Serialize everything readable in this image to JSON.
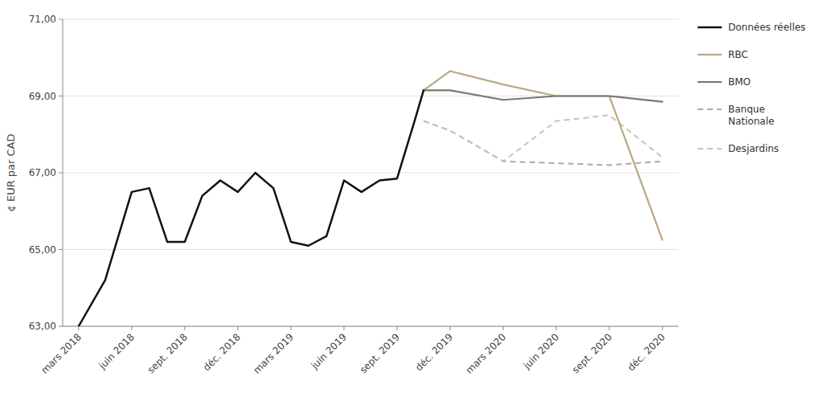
{
  "chart_data": {
    "type": "line",
    "y_label": "¢ EUR par CAD",
    "xlim": [
      -0.3,
      11.3
    ],
    "xticks": [
      {
        "value": 0,
        "label": "mars 2018"
      },
      {
        "value": 1,
        "label": "juin 2018"
      },
      {
        "value": 2,
        "label": "sept. 2018"
      },
      {
        "value": 3,
        "label": "déc. 2018"
      },
      {
        "value": 4,
        "label": "mars 2019"
      },
      {
        "value": 5,
        "label": "juin 2019"
      },
      {
        "value": 6,
        "label": "sept. 2019"
      },
      {
        "value": 7,
        "label": "déc. 2019"
      },
      {
        "value": 8,
        "label": "mars 2020"
      },
      {
        "value": 9,
        "label": "juin 2020"
      },
      {
        "value": 10,
        "label": "sept. 2020"
      },
      {
        "value": 11,
        "label": "déc. 2020"
      }
    ],
    "ylim": [
      63.0,
      71.0
    ],
    "yticks": [
      {
        "value": 63.0,
        "label": "63,00"
      },
      {
        "value": 65.0,
        "label": "65,00"
      },
      {
        "value": 67.0,
        "label": "67,00"
      },
      {
        "value": 69.0,
        "label": "69,00"
      },
      {
        "value": 71.0,
        "label": "71,00"
      }
    ],
    "grid": true,
    "legend": "right",
    "series": [
      {
        "name": "Données réelles",
        "color": "#111111",
        "line_style": "solid",
        "x": [
          0,
          0.5,
          1,
          1.33,
          1.67,
          2,
          2.33,
          2.67,
          3,
          3.33,
          3.67,
          4,
          4.33,
          4.67,
          5,
          5.33,
          5.67,
          6,
          6.33,
          6.5
        ],
        "values": [
          63.0,
          64.2,
          66.5,
          66.6,
          65.2,
          65.2,
          66.4,
          66.8,
          66.5,
          67.0,
          66.6,
          65.2,
          65.1,
          65.35,
          66.8,
          66.5,
          66.8,
          66.85,
          68.35,
          69.15
        ]
      },
      {
        "name": "RBC",
        "color": "#b8a882",
        "line_style": "solid",
        "x": [
          6.5,
          7,
          8,
          9,
          10,
          11
        ],
        "values": [
          69.15,
          69.65,
          69.3,
          69.0,
          69.0,
          65.25
        ]
      },
      {
        "name": "BMO",
        "color": "#7a7a6a",
        "line_style": "solid",
        "x": [
          6.5,
          7,
          8,
          9,
          10,
          11
        ],
        "values": [
          69.15,
          69.15,
          68.9,
          69.0,
          69.0,
          68.85
        ]
      },
      {
        "name": "Banque\nNationale",
        "color": "#aaaaaa",
        "line_style": "dashed",
        "x": [
          6.5,
          7,
          8,
          9,
          10,
          11
        ],
        "values": [
          68.35,
          68.1,
          67.3,
          67.25,
          67.2,
          67.3
        ]
      },
      {
        "name": "Desjardins",
        "color": "#c8c8aa",
        "line_style": "dashed",
        "x": [
          6.5,
          7,
          8,
          9,
          10,
          11
        ],
        "values": [
          68.35,
          68.1,
          67.3,
          68.35,
          68.5,
          67.4
        ]
      }
    ]
  }
}
